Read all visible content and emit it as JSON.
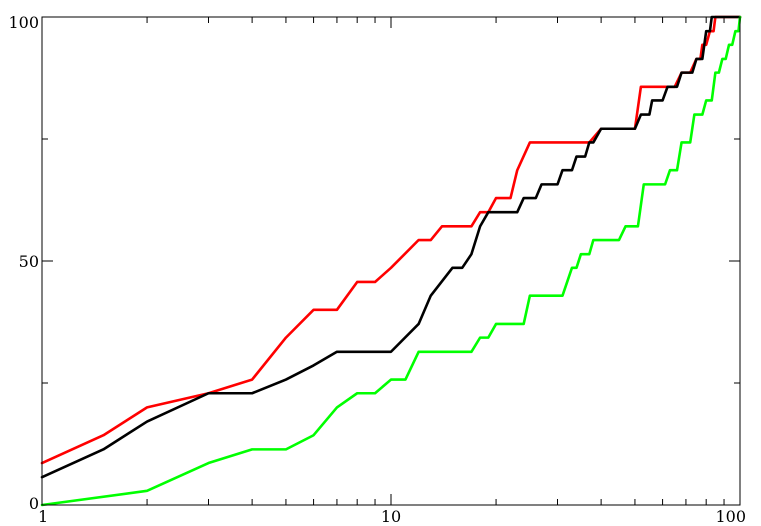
{
  "chart_data": {
    "type": "line",
    "title": "",
    "xlabel": "",
    "ylabel": "",
    "x_scale": "log",
    "xlim": [
      1,
      100
    ],
    "ylim": [
      0,
      100
    ],
    "grid": false,
    "x_ticks": [
      {
        "value": 1,
        "label": "1"
      },
      {
        "value": 10,
        "label": "10"
      },
      {
        "value": 100,
        "label": "100"
      }
    ],
    "y_ticks": [
      {
        "value": 0,
        "label": "0"
      },
      {
        "value": 50,
        "label": "50"
      },
      {
        "value": 100,
        "label": "100"
      }
    ],
    "x_minor_ticks": [
      2,
      3,
      4,
      5,
      6,
      7,
      8,
      9,
      20,
      30,
      40,
      50,
      60,
      70,
      80,
      90
    ],
    "y_minor_ticks": [
      25,
      75
    ],
    "series": [
      {
        "color": "#ff0000",
        "points": [
          [
            1,
            8.6
          ],
          [
            1.5,
            14.3
          ],
          [
            2,
            20
          ],
          [
            3,
            22.9
          ],
          [
            4,
            25.7
          ],
          [
            5,
            34.3
          ],
          [
            6,
            40
          ],
          [
            7,
            40
          ],
          [
            8,
            45.7
          ],
          [
            9,
            45.7
          ],
          [
            10,
            48.6
          ],
          [
            12,
            54.3
          ],
          [
            13,
            54.3
          ],
          [
            14,
            57.1
          ],
          [
            17,
            57.1
          ],
          [
            18,
            60
          ],
          [
            19,
            60
          ],
          [
            20,
            62.9
          ],
          [
            22,
            62.9
          ],
          [
            23,
            68.6
          ],
          [
            25,
            74.3
          ],
          [
            37,
            74.3
          ],
          [
            40,
            77.1
          ],
          [
            50,
            77.1
          ],
          [
            52,
            85.7
          ],
          [
            65,
            85.7
          ],
          [
            68,
            88.6
          ],
          [
            72,
            88.6
          ],
          [
            75,
            91.4
          ],
          [
            77,
            91.4
          ],
          [
            78,
            94.3
          ],
          [
            80,
            94.3
          ],
          [
            82,
            97.1
          ],
          [
            84,
            97.1
          ],
          [
            85,
            100
          ],
          [
            100,
            100
          ]
        ]
      },
      {
        "color": "#000000",
        "points": [
          [
            1,
            5.7
          ],
          [
            1.5,
            11.4
          ],
          [
            2,
            17.1
          ],
          [
            3,
            22.9
          ],
          [
            4,
            22.9
          ],
          [
            5,
            25.7
          ],
          [
            6,
            28.6
          ],
          [
            7,
            31.4
          ],
          [
            10,
            31.4
          ],
          [
            12,
            37.1
          ],
          [
            13,
            42.9
          ],
          [
            15,
            48.6
          ],
          [
            16,
            48.6
          ],
          [
            17,
            51.4
          ],
          [
            18,
            57.1
          ],
          [
            19,
            60
          ],
          [
            23,
            60
          ],
          [
            24,
            62.9
          ],
          [
            26,
            62.9
          ],
          [
            27,
            65.7
          ],
          [
            30,
            65.7
          ],
          [
            31,
            68.6
          ],
          [
            33,
            68.6
          ],
          [
            34,
            71.4
          ],
          [
            36,
            71.4
          ],
          [
            37,
            74.3
          ],
          [
            38,
            74.3
          ],
          [
            40,
            77.1
          ],
          [
            50,
            77.1
          ],
          [
            52,
            80
          ],
          [
            55,
            80
          ],
          [
            56,
            82.9
          ],
          [
            60,
            82.9
          ],
          [
            62,
            85.7
          ],
          [
            66,
            85.7
          ],
          [
            68,
            88.6
          ],
          [
            73,
            88.6
          ],
          [
            75,
            91.4
          ],
          [
            78,
            91.4
          ],
          [
            80,
            97.1
          ],
          [
            82,
            97.1
          ],
          [
            83,
            100
          ],
          [
            100,
            100
          ]
        ]
      },
      {
        "color": "#00ff00",
        "points": [
          [
            1,
            0
          ],
          [
            2,
            2.9
          ],
          [
            3,
            8.6
          ],
          [
            4,
            11.4
          ],
          [
            5,
            11.4
          ],
          [
            6,
            14.3
          ],
          [
            7,
            20
          ],
          [
            8,
            22.9
          ],
          [
            9,
            22.9
          ],
          [
            10,
            25.7
          ],
          [
            11,
            25.7
          ],
          [
            12,
            31.4
          ],
          [
            17,
            31.4
          ],
          [
            18,
            34.3
          ],
          [
            19,
            34.3
          ],
          [
            20,
            37.1
          ],
          [
            24,
            37.1
          ],
          [
            25,
            42.9
          ],
          [
            31,
            42.9
          ],
          [
            33,
            48.6
          ],
          [
            34,
            48.6
          ],
          [
            35,
            51.4
          ],
          [
            37,
            51.4
          ],
          [
            38,
            54.3
          ],
          [
            45,
            54.3
          ],
          [
            47,
            57.1
          ],
          [
            51,
            57.1
          ],
          [
            53,
            65.7
          ],
          [
            61,
            65.7
          ],
          [
            63,
            68.6
          ],
          [
            66,
            68.6
          ],
          [
            68,
            74.3
          ],
          [
            72,
            74.3
          ],
          [
            74,
            80
          ],
          [
            78,
            80
          ],
          [
            80,
            82.9
          ],
          [
            83,
            82.9
          ],
          [
            85,
            88.6
          ],
          [
            87,
            88.6
          ],
          [
            89,
            91.4
          ],
          [
            91,
            91.4
          ],
          [
            93,
            94.3
          ],
          [
            95,
            94.3
          ],
          [
            97,
            97.1
          ],
          [
            99,
            97.1
          ],
          [
            100,
            100
          ]
        ]
      }
    ]
  }
}
